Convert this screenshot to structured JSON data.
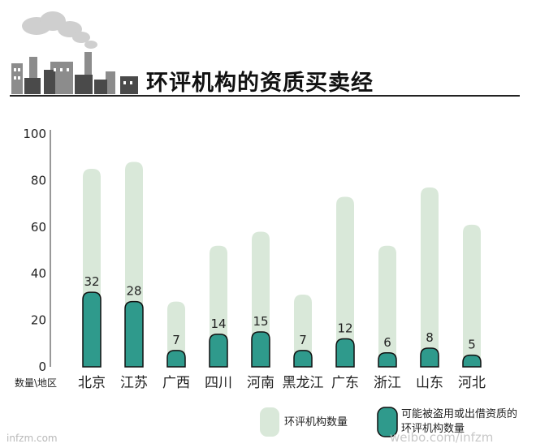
{
  "header": {
    "title": "环评机构的资质买卖经"
  },
  "chart_data": {
    "type": "bar",
    "title": "环评机构的资质买卖经",
    "xlabel": "数量\\地区",
    "ylabel": "",
    "ylim": [
      0,
      100
    ],
    "yticks": [
      0,
      20,
      40,
      60,
      80,
      100
    ],
    "grid": false,
    "legend_position": "bottom-right",
    "categories": [
      "北京",
      "江苏",
      "广西",
      "四川",
      "河南",
      "黑龙江",
      "广东",
      "浙江",
      "山东",
      "河北"
    ],
    "series": [
      {
        "name": "环评机构数量",
        "color": "#d9e8d9",
        "values": [
          85,
          88,
          28,
          52,
          58,
          31,
          73,
          52,
          77,
          61
        ]
      },
      {
        "name": "可能被盗用或出借资质的环评机构数量",
        "color": "#2f9a8c",
        "values": [
          32,
          28,
          7,
          14,
          15,
          7,
          12,
          6,
          8,
          5
        ]
      }
    ]
  },
  "footer": {
    "source": "infzm.com",
    "watermark": "weibo.com/infzm"
  }
}
